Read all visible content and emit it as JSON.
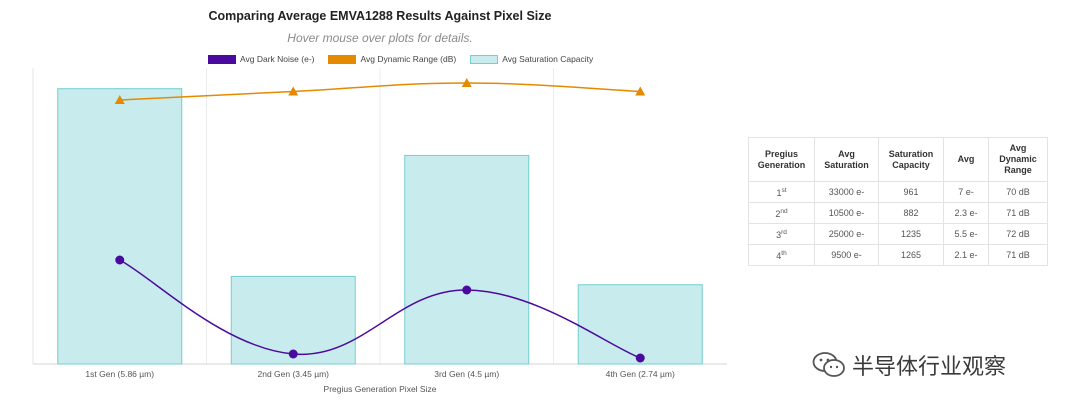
{
  "chart_data": {
    "type": "bar",
    "title": "Comparing Average EMVA1288 Results Against Pixel Size",
    "subtitle": "Hover mouse over plots for details.",
    "xlabel": "Pregius Generation Pixel Size",
    "categories": [
      "1st Gen (5.86 µm)",
      "2nd Gen (3.45 µm)",
      "3rd Gen (4.5 µm)",
      "4th Gen (2.74 µm)"
    ],
    "series": [
      {
        "name": "Avg Dark Noise (e-)",
        "type": "line",
        "color": "#4b0a9e",
        "marker": "circle",
        "values": [
          7,
          2.3,
          5.5,
          2.1
        ]
      },
      {
        "name": "Avg Dynamic Range (dB)",
        "type": "line",
        "color": "#e58a00",
        "marker": "triangle",
        "values": [
          70,
          71,
          72,
          71
        ]
      },
      {
        "name": "Avg Saturation Capacity",
        "type": "bar",
        "color": "#c8eced",
        "border": "#74cdd0",
        "values": [
          33000,
          10500,
          25000,
          9500
        ]
      }
    ],
    "grid": "vertical",
    "legend": "top-center"
  },
  "table": {
    "headers": [
      "Pregius Generation",
      "Avg Saturation",
      "Saturation Capacity",
      "Avg",
      "Avg Dynamic Range"
    ],
    "rows": [
      {
        "gen": "1",
        "sup": "st",
        "sat": "33000 e-",
        "cap": "961",
        "avg": "7 e-",
        "dr": "70 dB"
      },
      {
        "gen": "2",
        "sup": "nd",
        "sat": "10500 e-",
        "cap": "882",
        "avg": "2.3 e-",
        "dr": "71 dB"
      },
      {
        "gen": "3",
        "sup": "rd",
        "sat": "25000 e-",
        "cap": "1235",
        "avg": "5.5 e-",
        "dr": "72 dB"
      },
      {
        "gen": "4",
        "sup": "th",
        "sat": "9500 e-",
        "cap": "1265",
        "avg": "2.1 e-",
        "dr": "71 dB"
      }
    ]
  },
  "watermark": {
    "text": "半导体行业观察",
    "icon": "wechat-icon"
  }
}
